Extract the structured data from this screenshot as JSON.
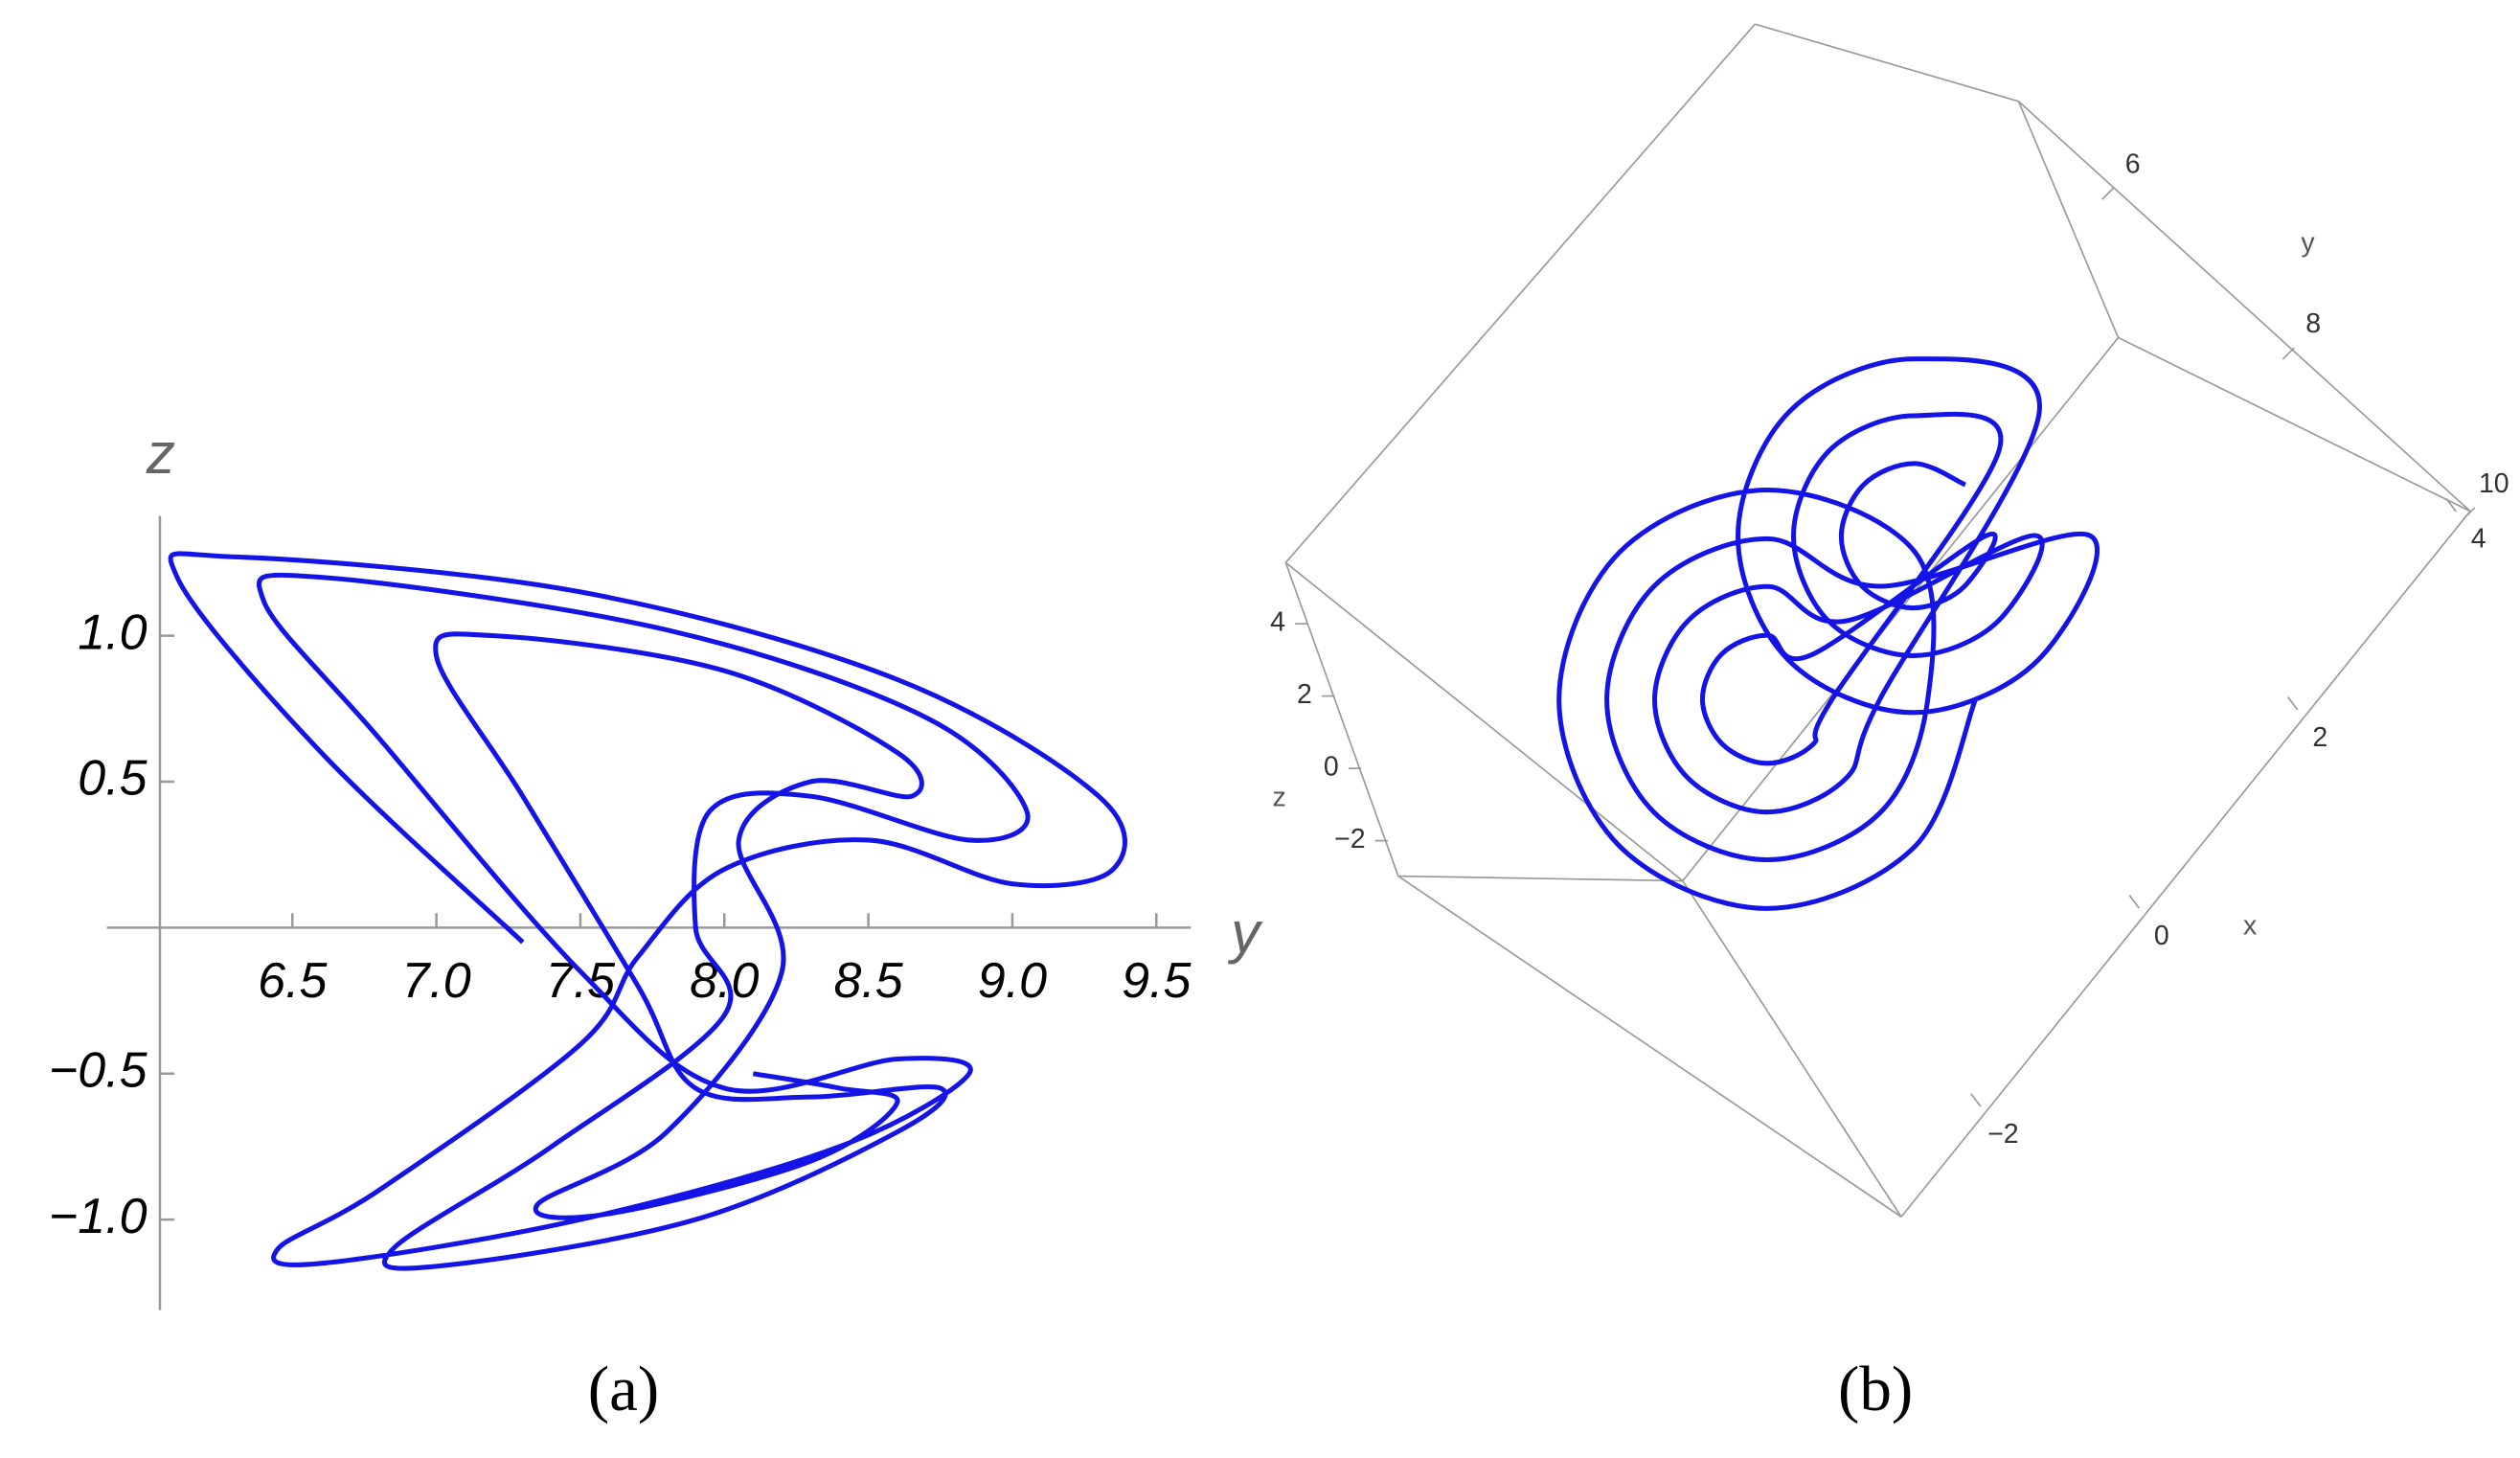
{
  "chart_data": [
    {
      "type": "line",
      "caption": "(a)",
      "xlabel": "y",
      "ylabel": "z",
      "xlim": [
        6.04,
        9.62
      ],
      "ylim": [
        -1.31,
        1.41
      ],
      "xticks": [
        6.5,
        {
          "value": 7,
          "label": "7.0"
        },
        7.5,
        {
          "value": 8,
          "label": "8.0"
        },
        8.5,
        {
          "value": 9,
          "label": "9.0"
        },
        9.5
      ],
      "yticks": [
        {
          "value": -1,
          "label": "−1.0"
        },
        {
          "value": -0.5,
          "label": "−0.5"
        },
        0.5,
        {
          "value": 1,
          "label": "1.0"
        }
      ],
      "series": [
        {
          "color": "#1414e6",
          "x": [
            7.3,
            6.6,
            6.1,
            6.3,
            7.5,
            8.6,
            9.3,
            9.35,
            9.0,
            8.5,
            8.0,
            7.7,
            7.5,
            6.8,
            6.45,
            6.6,
            7.5,
            8.4,
            8.85,
            8.6,
            8.0,
            7.5,
            6.8,
            6.4,
            6.6,
            7.8,
            8.7,
            9.05,
            8.85,
            8.3,
            7.95,
            7.9,
            8.0,
            7.4,
            6.85,
            7.0,
            7.9,
            8.6,
            8.75,
            8.3,
            7.9,
            7.7,
            7.3,
            7.0,
            7.2,
            8.0,
            8.6,
            8.65,
            8.3,
            8.05,
            8.2,
            7.8,
            7.35,
            7.6,
            8.3,
            8.6,
            8.4,
            8.1
          ],
          "values": [
            -0.05,
            0.6,
            1.2,
            1.27,
            1.15,
            0.85,
            0.45,
            0.2,
            0.15,
            0.3,
            0.2,
            -0.1,
            -0.4,
            -0.9,
            -1.1,
            -1.15,
            -1.0,
            -0.75,
            -0.5,
            -0.45,
            -0.55,
            -0.15,
            0.65,
            1.12,
            1.2,
            1.02,
            0.72,
            0.4,
            0.3,
            0.45,
            0.4,
            0.0,
            -0.3,
            -0.75,
            -1.1,
            -1.16,
            -1.0,
            -0.7,
            -0.55,
            -0.58,
            -0.55,
            -0.2,
            0.45,
            0.93,
            1.0,
            0.88,
            0.6,
            0.45,
            0.5,
            0.3,
            -0.15,
            -0.7,
            -0.95,
            -0.98,
            -0.8,
            -0.6,
            -0.55,
            -0.5
          ]
        }
      ]
    },
    {
      "type": "line3d",
      "caption": "(b)",
      "xlabel": "x",
      "ylabel": "y",
      "zlabel": "z",
      "xticks": [
        {
          "value": -2,
          "label": "−2"
        },
        0,
        2,
        4
      ],
      "yticks": [
        6,
        8,
        10
      ],
      "zticks": [
        {
          "value": -2,
          "label": "−2"
        },
        0,
        2,
        4
      ],
      "series": [
        {
          "color": "#1414e6",
          "x": [
            0.24,
            -0.95,
            -2.09,
            -2.49,
            -1.94,
            -0.75,
            0.39,
            0.79,
            -0.01,
            -0.93,
            -1.8,
            -2.11,
            -1.69,
            -0.77,
            0.1,
            0.41,
            1.73,
            0.72,
            -0.24,
            -0.58,
            -0.11,
            0.9,
            1.86,
            2.2,
            -0.26,
            -0.91,
            -1.52,
            -1.73,
            -1.44,
            -0.79,
            -0.18,
            0.03,
            1.44,
            0.75,
            0.1,
            -0.14,
            0.18,
            0.87,
            1.52,
            1.76,
            -0.51,
            -0.88,
            -1.23,
            -1.35,
            -1.19,
            -0.82,
            -0.47,
            -0.35,
            1.19,
            0.77,
            0.38,
            0.24,
            0.43,
            0.85,
            1.24,
            1.38
          ],
          "y": [
            9.2,
            9.57,
            8.93,
            7.65,
            6.5,
            6.13,
            6.77,
            8.05,
            8.89,
            9.17,
            8.68,
            7.7,
            6.81,
            6.53,
            7.02,
            8.0,
            9.23,
            9.54,
            9.0,
            7.92,
            6.95,
            6.64,
            7.18,
            8.26,
            8.58,
            8.77,
            8.43,
            7.74,
            7.12,
            6.93,
            7.27,
            7.96,
            8.87,
            9.08,
            8.71,
            7.98,
            7.31,
            7.1,
            7.47,
            8.2,
            8.27,
            8.38,
            8.18,
            7.79,
            7.43,
            7.32,
            7.52,
            7.91,
            8.56,
            8.68,
            8.46,
            8.02,
            7.62,
            7.5,
            7.72,
            8.16
          ],
          "z": [
            0,
            0,
            0,
            0,
            0,
            0,
            0,
            0,
            0,
            0,
            0,
            0,
            0,
            0,
            0,
            0,
            0.5,
            0.5,
            0.5,
            0.5,
            0.5,
            0.5,
            0.5,
            0.5,
            0,
            0,
            0,
            0,
            0,
            0,
            0,
            0,
            0.5,
            0.5,
            0.5,
            0.5,
            0.5,
            0.5,
            0.5,
            0.5,
            0,
            0,
            0,
            0,
            0,
            0,
            0,
            0,
            0.5,
            0.5,
            0.5,
            0.5,
            0.5,
            0.5,
            0.5,
            0.5
          ]
        }
      ]
    }
  ]
}
